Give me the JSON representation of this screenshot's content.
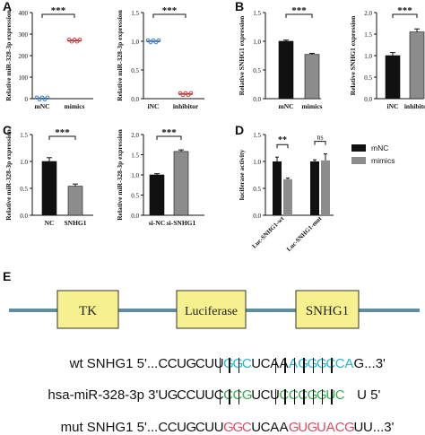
{
  "panels": {
    "A": "A",
    "B": "B",
    "C": "C",
    "D": "D",
    "E": "E"
  },
  "colors": {
    "black": "#111111",
    "grey": "#8c8c8c",
    "blue": "#29b3d1",
    "green": "#3aa84e",
    "red": "#d64f63",
    "scatter_blue": "#3a7fd6",
    "scatter_red": "#e0393b",
    "construct_box": "#f7f08e",
    "construct_line": "#5f8da1"
  },
  "chart_data": [
    {
      "type": "scatter",
      "panel": "A",
      "ylabel": "Relative miR-328-3p expression",
      "ylim": [
        0,
        400
      ],
      "yticks": [
        "0",
        "100",
        "200",
        "300",
        "400"
      ],
      "categories": [
        "mNC",
        "mimics"
      ],
      "values": [
        1,
        270
      ],
      "point_colors": [
        "#3a7fd6",
        "#e0393b"
      ],
      "significance": "***"
    },
    {
      "type": "scatter",
      "panel": "A",
      "ylabel": "Relative miR-328-3p expression",
      "ylim": [
        0,
        1.5
      ],
      "yticks": [
        "0.0",
        "0.5",
        "1.0",
        "1.5"
      ],
      "categories": [
        "iNC",
        "inhibitor"
      ],
      "values": [
        1.0,
        0.08
      ],
      "point_colors": [
        "#3a7fd6",
        "#e0393b"
      ],
      "significance": "***"
    },
    {
      "type": "bar",
      "panel": "B",
      "ylabel": "Relative SNHG1 expression",
      "ylim": [
        0,
        1.5
      ],
      "yticks": [
        "0.0",
        "0.5",
        "1.0",
        "1.5"
      ],
      "categories": [
        "mNC",
        "mimics"
      ],
      "values": [
        1.0,
        0.77
      ],
      "errors": [
        0.02,
        0.02
      ],
      "bar_colors": [
        "#111111",
        "#8c8c8c"
      ],
      "significance": "***"
    },
    {
      "type": "bar",
      "panel": "B",
      "ylabel": "Relative SNHG1 expression",
      "ylim": [
        0,
        2.0
      ],
      "yticks": [
        "0.0",
        "0.5",
        "1.0",
        "1.5",
        "2.0"
      ],
      "categories": [
        "iNC",
        "inhibitor"
      ],
      "values": [
        1.0,
        1.55
      ],
      "errors": [
        0.07,
        0.07
      ],
      "bar_colors": [
        "#111111",
        "#8c8c8c"
      ],
      "significance": "***"
    },
    {
      "type": "bar",
      "panel": "C",
      "ylabel": "Relative miR-328-3p expression",
      "ylim": [
        0,
        1.5
      ],
      "yticks": [
        "0.0",
        "0.5",
        "1.0",
        "1.5"
      ],
      "categories": [
        "NC",
        "SNHG1"
      ],
      "values": [
        1.0,
        0.54
      ],
      "errors": [
        0.07,
        0.04
      ],
      "bar_colors": [
        "#111111",
        "#8c8c8c"
      ],
      "significance": "***"
    },
    {
      "type": "bar",
      "panel": "C",
      "ylabel": "Relative miR-328-3p expression",
      "ylim": [
        0,
        2.0
      ],
      "yticks": [
        "0.0",
        "0.5",
        "1.0",
        "1.5",
        "2.0"
      ],
      "categories": [
        "si-NC",
        "si-SNHG1"
      ],
      "values": [
        1.0,
        1.58
      ],
      "errors": [
        0.03,
        0.04
      ],
      "bar_colors": [
        "#111111",
        "#8c8c8c"
      ],
      "significance": "***"
    },
    {
      "type": "bar",
      "panel": "D",
      "ylabel": "luciferase activity",
      "ylim": [
        0,
        1.5
      ],
      "yticks": [
        "0.0",
        "0.5",
        "1.0",
        "1.5"
      ],
      "categories": [
        "Luc-SNHG1-wt",
        "Luc-SNHG1-mut"
      ],
      "series": [
        {
          "name": "mNC",
          "values": [
            1.0,
            1.0
          ],
          "errors": [
            0.08,
            0.03
          ],
          "color": "#111111"
        },
        {
          "name": "mimics",
          "values": [
            0.67,
            1.02
          ],
          "errors": [
            0.02,
            0.12
          ],
          "color": "#8c8c8c"
        }
      ],
      "significance": [
        "**",
        "ns"
      ],
      "legend": "right"
    }
  ],
  "construct": {
    "boxes": [
      "TK",
      "Luciferase",
      "SNHG1"
    ]
  },
  "sequences": {
    "wt": {
      "label": "wt SNHG1 5'...",
      "bases": "CCUGCUUGGCUCAAAGGGCCA",
      "end": "G...3'"
    },
    "mir": {
      "label": "hsa-miR-328-3p 3'",
      "bases": "UGCCUUCCCGUCUCCCGGUC",
      "end": "U 5'"
    },
    "mut": {
      "label": "mut SNHG1 5'...",
      "bases": "CCUGCUUGGCUCAAGUGUACGU",
      "end": "U...3'"
    }
  }
}
